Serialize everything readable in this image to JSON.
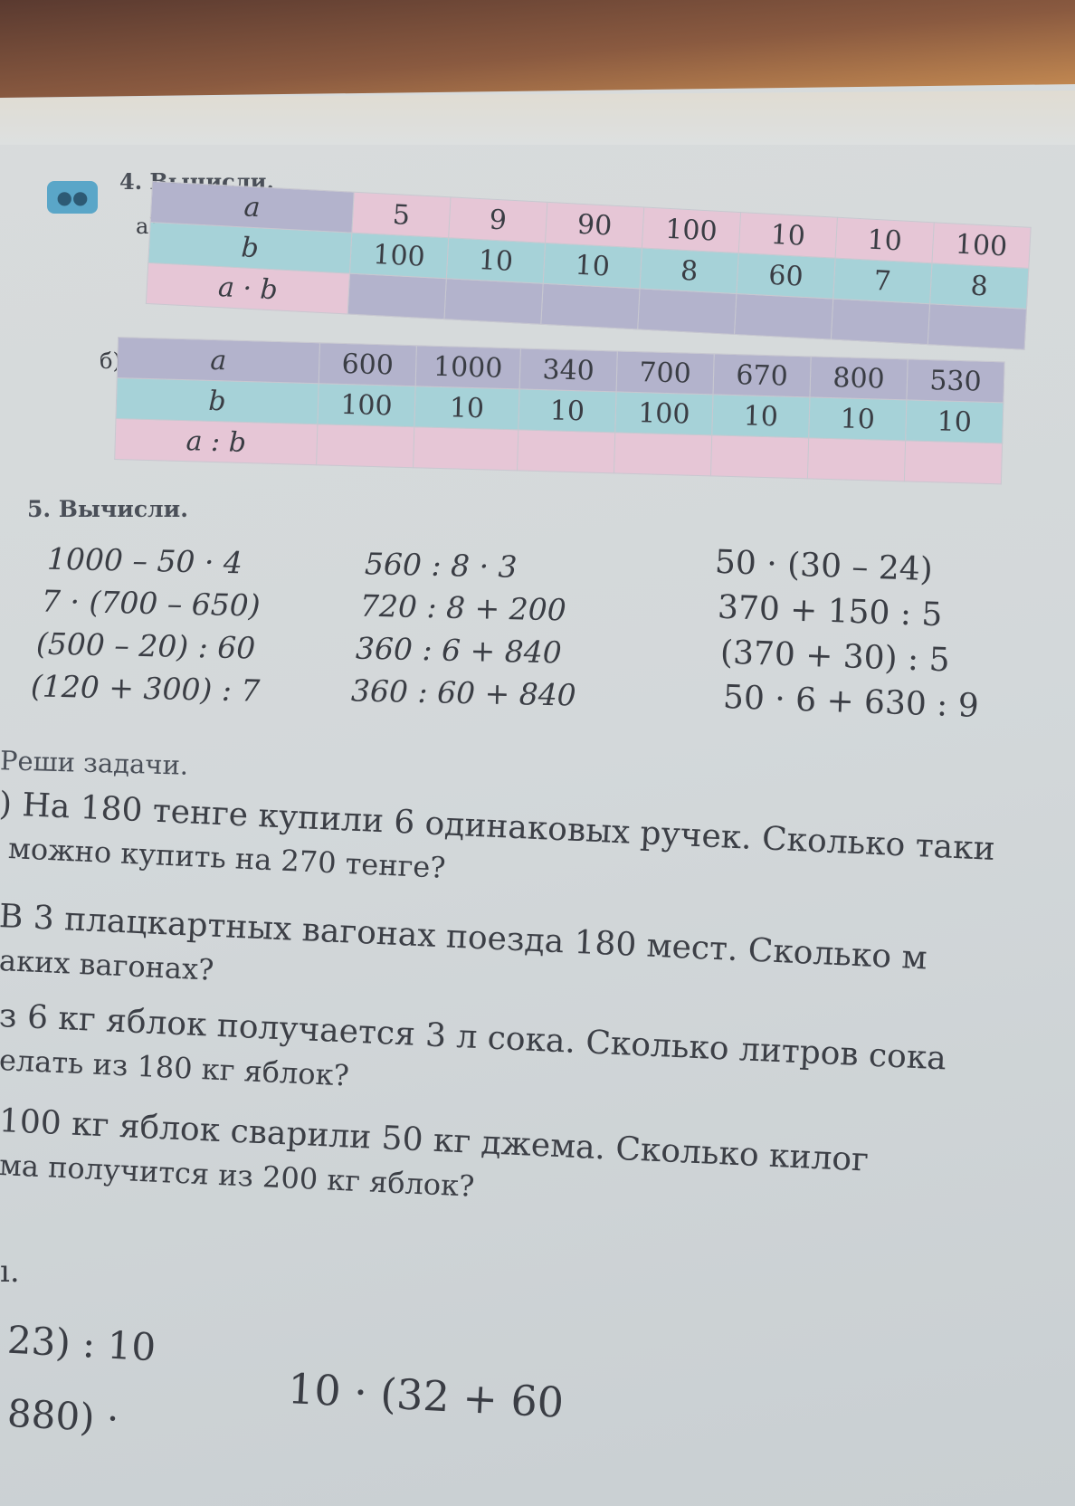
{
  "exercise4": {
    "title": "4. Вычисли.",
    "part_a": {
      "label": "а)",
      "rows": [
        {
          "label": "a",
          "values": [
            "5",
            "9",
            "90",
            "100",
            "10",
            "10",
            "100"
          ]
        },
        {
          "label": "b",
          "values": [
            "100",
            "10",
            "10",
            "8",
            "60",
            "7",
            "8"
          ]
        },
        {
          "label": "a · b",
          "values": [
            "",
            "",
            "",
            "",
            "",
            "",
            ""
          ]
        }
      ]
    },
    "part_b": {
      "label": "б)",
      "rows": [
        {
          "label": "a",
          "values": [
            "600",
            "1000",
            "340",
            "700",
            "670",
            "800",
            "530"
          ]
        },
        {
          "label": "b",
          "values": [
            "100",
            "10",
            "10",
            "100",
            "10",
            "10",
            "10"
          ]
        },
        {
          "label": "a : b",
          "values": [
            "",
            "",
            "",
            "",
            "",
            "",
            ""
          ]
        }
      ]
    }
  },
  "exercise5": {
    "title": "5. Вычисли.",
    "col1": [
      "1000 – 50 · 4",
      "7 · (700 – 650)",
      "(500 – 20) : 60",
      "(120 + 300) : 7"
    ],
    "col2": [
      "560 : 8 · 3",
      "720 : 8 + 200",
      "360 : 6 + 840",
      "360 : 60 + 840"
    ],
    "col3": [
      "50 · (30 – 24)",
      "370 + 150 : 5",
      "(370 + 30) : 5",
      "50 · 6 + 630 : 9"
    ]
  },
  "exercise6": {
    "title": "Реши задачи.",
    "lines": [
      ") На 180 тенге купили 6 одинаковых ручек. Сколько таки",
      "можно купить на 270 тенге?",
      "В 3 плацкартных вагонах поезда 180 мест. Сколько м",
      "аких вагонах?",
      "з 6 кг яблок получается 3 л сока. Сколько литров сока",
      "елать из 180 кг яблок?",
      "100 кг яблок сварили 50 кг джема. Сколько килог",
      "ма получится из 200 кг яблок?"
    ]
  },
  "exercise7": {
    "title": "ı.",
    "lines": [
      "23) : 10",
      "880) ·",
      "10 · (32 + 60"
    ]
  }
}
